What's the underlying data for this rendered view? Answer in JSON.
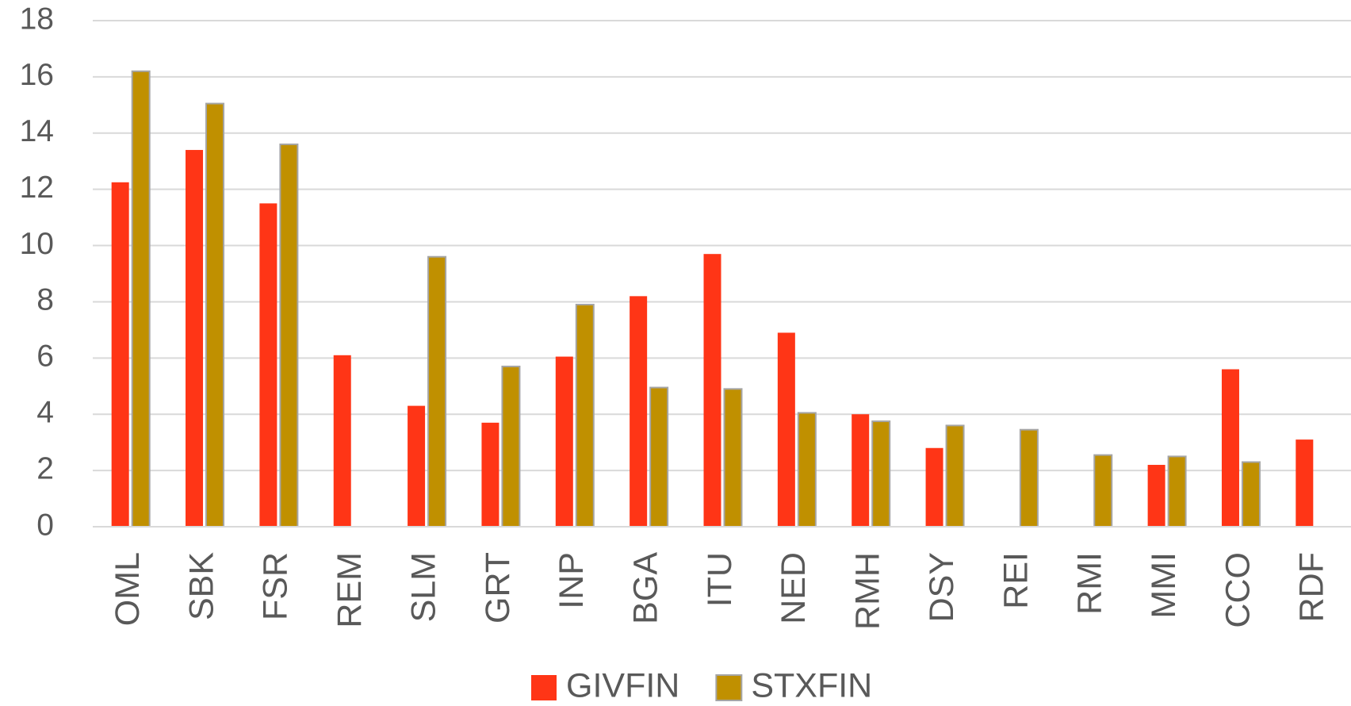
{
  "chart_data": {
    "type": "bar",
    "categories": [
      "OML",
      "SBK",
      "FSR",
      "REM",
      "SLM",
      "GRT",
      "INP",
      "BGA",
      "ITU",
      "NED",
      "RMH",
      "DSY",
      "REI",
      "RMI",
      "MMI",
      "CCO",
      "RDF"
    ],
    "series": [
      {
        "name": "GIVFIN",
        "color": "#ff3516",
        "values": [
          12.25,
          13.4,
          11.5,
          6.1,
          4.3,
          3.7,
          6.05,
          8.2,
          9.7,
          6.9,
          4.0,
          2.8,
          null,
          null,
          2.2,
          5.6,
          3.1
        ]
      },
      {
        "name": "STXFIN",
        "color": "#c09000",
        "values": [
          16.2,
          15.05,
          13.6,
          null,
          9.6,
          5.7,
          7.9,
          4.95,
          4.9,
          4.05,
          3.75,
          3.6,
          3.45,
          2.55,
          2.5,
          2.3,
          null
        ]
      }
    ],
    "ylim": [
      0,
      18
    ],
    "yticks": [
      0,
      2,
      4,
      6,
      8,
      10,
      12,
      14,
      16,
      18
    ],
    "grid": true,
    "legend": "bottom"
  }
}
